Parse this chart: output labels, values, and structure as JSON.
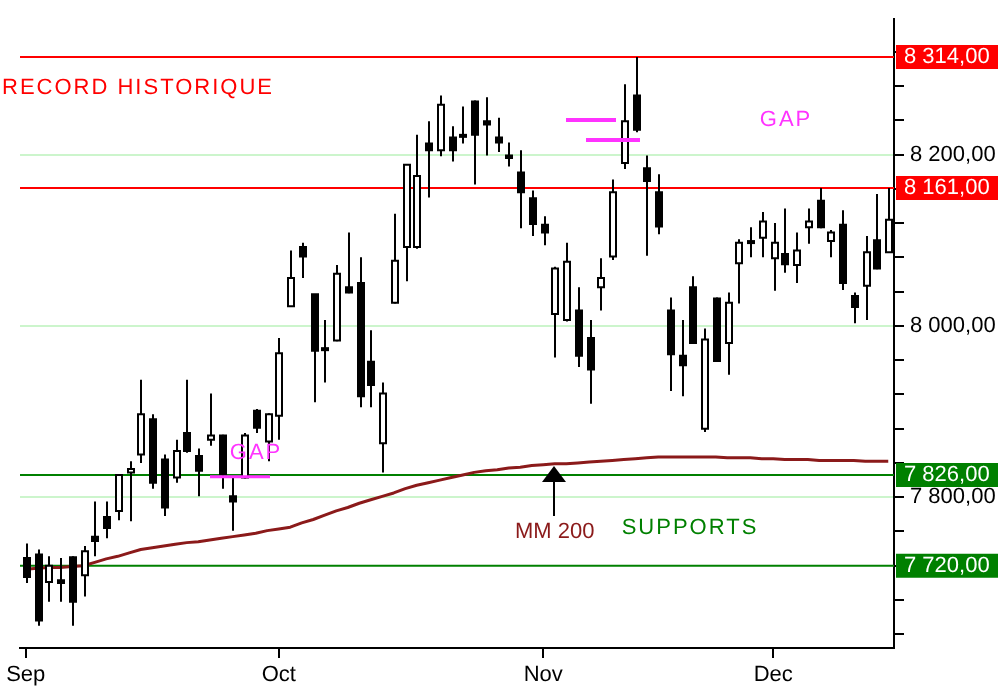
{
  "chart_data": {
    "type": "candlestick",
    "grid": "y",
    "categories": [
      "Sep",
      null,
      null,
      null,
      null,
      null,
      null,
      null,
      null,
      null,
      null,
      null,
      null,
      null,
      null,
      null,
      null,
      null,
      null,
      null,
      null,
      null,
      "Oct",
      null,
      null,
      null,
      null,
      null,
      null,
      null,
      null,
      null,
      null,
      null,
      null,
      null,
      null,
      null,
      null,
      null,
      null,
      null,
      null,
      null,
      null,
      "Nov",
      null,
      null,
      null,
      null,
      null,
      null,
      null,
      null,
      null,
      null,
      null,
      null,
      null,
      null,
      null,
      null,
      null,
      null,
      null,
      "Dec",
      null,
      null,
      null,
      null,
      null,
      null,
      null,
      null,
      null,
      null
    ],
    "ohlc": [
      [
        7729,
        7746,
        7700,
        7707
      ],
      [
        7733,
        7739,
        7650,
        7656
      ],
      [
        7701,
        7731,
        7678,
        7720
      ],
      [
        7703,
        7729,
        7678,
        7700
      ],
      [
        7730,
        7731,
        7650,
        7678
      ],
      [
        7709,
        7743,
        7684,
        7737
      ],
      [
        7754,
        7795,
        7731,
        7749
      ],
      [
        7777,
        7795,
        7752,
        7764
      ],
      [
        7784,
        7827,
        7773,
        7826
      ],
      [
        7829,
        7842,
        7772,
        7833
      ],
      [
        7850,
        7937,
        7840,
        7897
      ],
      [
        7891,
        7897,
        7810,
        7817
      ],
      [
        7844,
        7850,
        7778,
        7788
      ],
      [
        7823,
        7867,
        7817,
        7854
      ],
      [
        7875,
        7937,
        7852,
        7854
      ],
      [
        7848,
        7857,
        7801,
        7831
      ],
      [
        7867,
        7921,
        7860,
        7872
      ],
      [
        7872,
        7873,
        7810,
        7827
      ],
      [
        7801,
        7823,
        7761,
        7795
      ],
      [
        7823,
        7875,
        7822,
        7872
      ],
      [
        7901,
        7903,
        7875,
        7881
      ],
      [
        7865,
        7898,
        7842,
        7897
      ],
      [
        7895,
        7986,
        7867,
        7968
      ],
      [
        8023,
        8088,
        8022,
        8056
      ],
      [
        8092,
        8097,
        8056,
        8081
      ],
      [
        8037,
        8037,
        7911,
        7971
      ],
      [
        7974,
        8007,
        7934,
        7974
      ],
      [
        7983,
        8071,
        7982,
        8061
      ],
      [
        8045,
        8109,
        8038,
        8039
      ],
      [
        8050,
        8080,
        7905,
        7918
      ],
      [
        7958,
        7995,
        7905,
        7931
      ],
      [
        7863,
        7934,
        7829,
        7921
      ],
      [
        8027,
        8131,
        8026,
        8076
      ],
      [
        8092,
        8188,
        8052,
        8188
      ],
      [
        8092,
        8223,
        8090,
        8175
      ],
      [
        8213,
        8239,
        8150,
        8205
      ],
      [
        8205,
        8269,
        8198,
        8258
      ],
      [
        8220,
        8233,
        8192,
        8205
      ],
      [
        8223,
        8256,
        8213,
        8223
      ],
      [
        8262,
        8263,
        8165,
        8223
      ],
      [
        8239,
        8267,
        8199,
        8235
      ],
      [
        8220,
        8243,
        8203,
        8214
      ],
      [
        8199,
        8214,
        8186,
        8196
      ],
      [
        8179,
        8205,
        8114,
        8156
      ],
      [
        8149,
        8158,
        8105,
        8119
      ],
      [
        8118,
        8128,
        8094,
        8109
      ],
      [
        8014,
        8069,
        7963,
        8067
      ],
      [
        8007,
        8097,
        8005,
        8075
      ],
      [
        8018,
        8045,
        7952,
        7965
      ],
      [
        7986,
        8007,
        7909,
        7949
      ],
      [
        8045,
        8079,
        8018,
        8056
      ],
      [
        8081,
        8171,
        8077,
        8156
      ],
      [
        8190,
        8282,
        8183,
        8239
      ],
      [
        8269,
        8314,
        8226,
        8229
      ],
      [
        8184,
        8199,
        8082,
        8169
      ],
      [
        8156,
        8177,
        8107,
        8116
      ],
      [
        8018,
        8033,
        7924,
        7967
      ],
      [
        7965,
        8007,
        7918,
        7954
      ],
      [
        8045,
        8058,
        7979,
        7980
      ],
      [
        7880,
        7997,
        7876,
        7984
      ],
      [
        8032,
        8033,
        7958,
        7959
      ],
      [
        7980,
        8039,
        7943,
        8027
      ],
      [
        8073,
        8101,
        8026,
        8097
      ],
      [
        8099,
        8115,
        8080,
        8099
      ],
      [
        8103,
        8133,
        8080,
        8122
      ],
      [
        8079,
        8120,
        8041,
        8097
      ],
      [
        8084,
        8137,
        8062,
        8072
      ],
      [
        8071,
        8109,
        8050,
        8088
      ],
      [
        8115,
        8137,
        8096,
        8122
      ],
      [
        8146,
        8161,
        8114,
        8115
      ],
      [
        8099,
        8112,
        8080,
        8109
      ],
      [
        8118,
        8135,
        8042,
        8050
      ],
      [
        8035,
        8039,
        8003,
        8022
      ],
      [
        8047,
        8105,
        8007,
        8086
      ],
      [
        8100,
        8154,
        8066,
        8067
      ],
      [
        8086,
        8161,
        8085,
        8124
      ]
    ],
    "series": [
      {
        "name": "MM 200",
        "type": "line",
        "color": "#8b1a1a",
        "values": [
          7716,
          7717,
          7718,
          7718,
          7719,
          7720,
          7724,
          7728,
          7731,
          7735,
          7739,
          7741,
          7743,
          7745,
          7747,
          7748,
          7750,
          7752,
          7754,
          7756,
          7758,
          7761,
          7763,
          7765,
          7770,
          7774,
          7779,
          7784,
          7788,
          7793,
          7797,
          7801,
          7805,
          7810,
          7814,
          7817,
          7820,
          7823,
          7826,
          7829,
          7831,
          7832,
          7834,
          7835,
          7837,
          7838,
          7839,
          7839,
          7840,
          7841,
          7842,
          7843,
          7844,
          7845,
          7846,
          7847,
          7847,
          7847,
          7847,
          7847,
          7847,
          7846,
          7846,
          7846,
          7845,
          7845,
          7844,
          7844,
          7844,
          7843,
          7843,
          7843,
          7843,
          7842,
          7842,
          7842
        ]
      }
    ],
    "ylim": [
      7624,
      8358
    ],
    "yticks": [
      {
        "value": 7640,
        "label": null
      },
      {
        "value": 7680,
        "label": null
      },
      {
        "value": 7720,
        "label": null
      },
      {
        "value": 7760,
        "label": null
      },
      {
        "value": 7800,
        "label": "7 800,00"
      },
      {
        "value": 7840,
        "label": null
      },
      {
        "value": 7880,
        "label": null
      },
      {
        "value": 7920,
        "label": null
      },
      {
        "value": 7960,
        "label": null
      },
      {
        "value": 8000,
        "label": "8 000,00"
      },
      {
        "value": 8040,
        "label": null
      },
      {
        "value": 8080,
        "label": null
      },
      {
        "value": 8120,
        "label": null
      },
      {
        "value": 8160,
        "label": null
      },
      {
        "value": 8200,
        "label": "8 200,00"
      },
      {
        "value": 8240,
        "label": null
      },
      {
        "value": 8280,
        "label": null
      },
      {
        "value": 8320,
        "label": null
      }
    ],
    "ref_lines": [
      {
        "axis": "y",
        "value": 8314,
        "label": "8 314,00",
        "color": "#ff0000"
      },
      {
        "axis": "y",
        "value": 8161,
        "label": "8 161,00",
        "color": "#ff0000"
      },
      {
        "axis": "y",
        "value": 7826,
        "label": "7 826,00",
        "color": "#008000"
      },
      {
        "axis": "y",
        "value": 7720,
        "label": "7 720,00",
        "color": "#008000"
      }
    ],
    "annotations": [
      "RECORD HISTORIQUE",
      "GAP",
      {
        "text": "GAP",
        "y": 7824
      },
      "SUPPORTS"
    ]
  }
}
